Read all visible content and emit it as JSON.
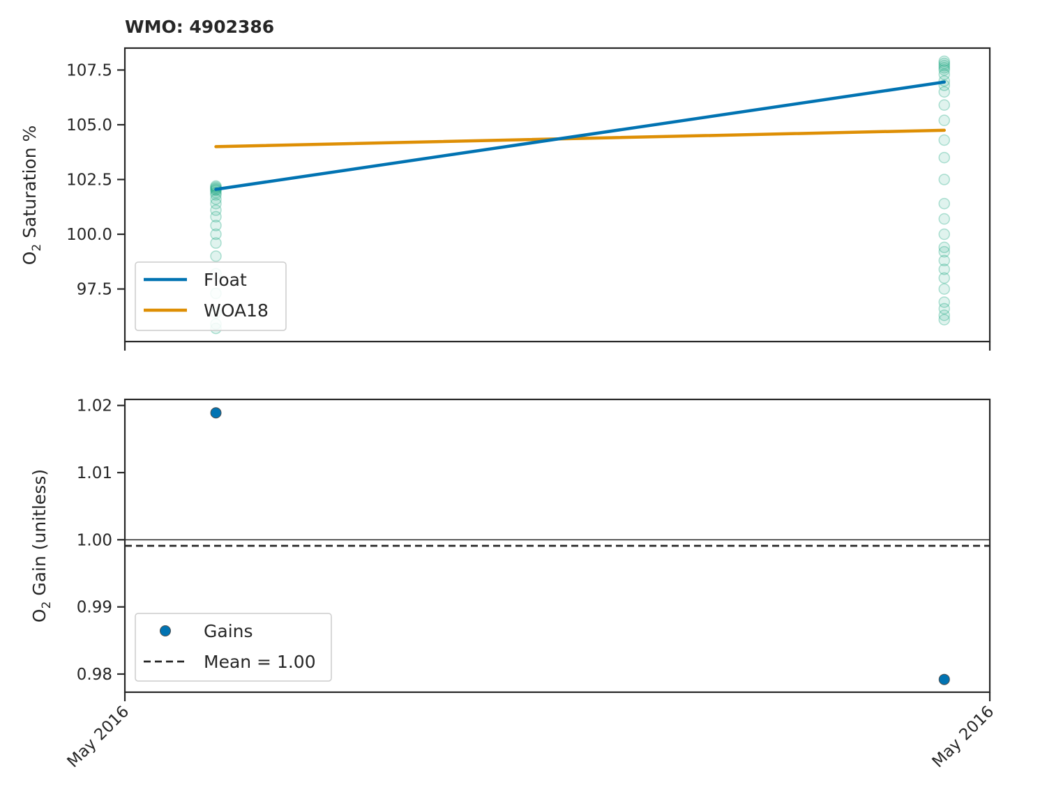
{
  "chart_data": [
    {
      "type": "line",
      "title": "WMO: 4902386",
      "ylabel": "O2 Saturation %",
      "ylabel_parts": {
        "base": "O",
        "sub": "2",
        "rest": " Saturation %"
      },
      "ylim": [
        95.1,
        108.5
      ],
      "yticks": [
        97.5,
        100.0,
        102.5,
        105.0,
        107.5
      ],
      "ytick_labels": [
        "97.5",
        "100.0",
        "102.5",
        "105.0",
        "107.5"
      ],
      "x_dates": [
        "2016-05-01",
        "2016-05-03"
      ],
      "xlim": [
        "2016-04-30 18:00",
        "2016-05-03 03:00"
      ],
      "series": [
        {
          "name": "Float",
          "color": "#0173b2",
          "x": [
            "2016-05-01",
            "2016-05-03"
          ],
          "values": [
            102.05,
            106.95
          ]
        },
        {
          "name": "WOA18",
          "color": "#de8f05",
          "x": [
            "2016-05-01",
            "2016-05-03"
          ],
          "values": [
            104.0,
            104.75
          ]
        }
      ],
      "profile_scatter": {
        "color": "#029e73",
        "groups": [
          {
            "x": "2016-05-01",
            "values": [
              102.2,
              102.15,
              102.1,
              102.05,
              102.0,
              101.9,
              101.8,
              101.6,
              101.4,
              101.1,
              100.8,
              100.4,
              100.0,
              99.6,
              99.0,
              98.2,
              97.3,
              96.4,
              95.9,
              95.7
            ]
          },
          {
            "x": "2016-05-03",
            "values": [
              107.9,
              107.8,
              107.7,
              107.6,
              107.5,
              107.3,
              107.0,
              106.8,
              106.5,
              105.9,
              105.2,
              104.3,
              103.5,
              102.5,
              101.4,
              100.7,
              100.0,
              99.4,
              99.2,
              98.8,
              98.4,
              98.0,
              97.5,
              96.9,
              96.6,
              96.3,
              96.1
            ]
          }
        ]
      },
      "legend": {
        "placement": "lower-left",
        "entries": [
          "Float",
          "WOA18"
        ]
      }
    },
    {
      "type": "scatter",
      "ylabel": "O2 Gain (unitless)",
      "ylabel_parts": {
        "base": "O",
        "sub": "2",
        "rest": " Gain (unitless)"
      },
      "ylim": [
        0.9773,
        1.0209
      ],
      "yticks": [
        0.98,
        0.99,
        1.0,
        1.01,
        1.02
      ],
      "ytick_labels": [
        "0.98",
        "0.99",
        "1.00",
        "1.01",
        "1.02"
      ],
      "xlim": [
        "2016-04-30 18:00",
        "2016-05-03 03:00"
      ],
      "xtick_labels": [
        "May 2016",
        "May 2016"
      ],
      "series": [
        {
          "name": "Gains",
          "color": "#0173b2",
          "x": [
            "2016-05-01",
            "2016-05-03"
          ],
          "values": [
            1.0189,
            0.9792
          ]
        }
      ],
      "reference_lines": [
        {
          "label": "",
          "value": 1.0,
          "style": "solid",
          "color": "#262626"
        },
        {
          "name": "Mean = 1.00",
          "value": 0.9991,
          "style": "dashed",
          "color": "#262626"
        }
      ],
      "legend": {
        "placement": "lower-left",
        "entries": [
          "Gains",
          "Mean = 1.00"
        ]
      }
    }
  ]
}
